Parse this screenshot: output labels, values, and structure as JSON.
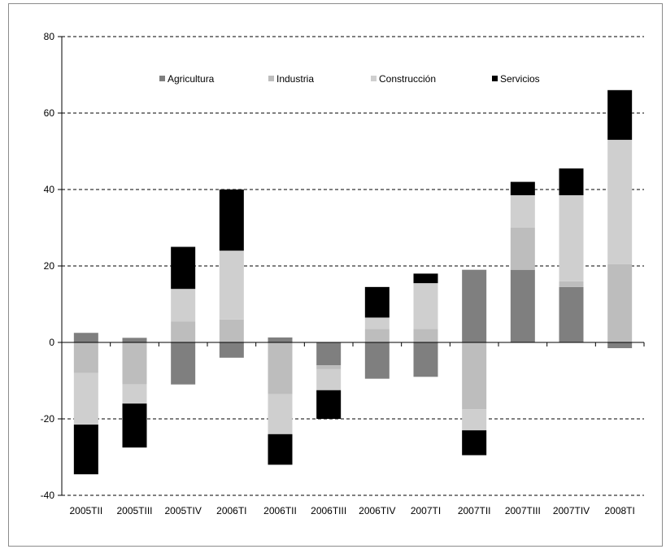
{
  "chart_data": {
    "type": "bar",
    "stacked": true,
    "categories": [
      "2005TII",
      "2005TIII",
      "2005TIV",
      "2006TI",
      "2006TII",
      "2006TIII",
      "2006TIV",
      "2007TI",
      "2007TII",
      "2007TIII",
      "2007TIV",
      "2008TI"
    ],
    "series": [
      {
        "name": "Agricultura",
        "color": "#7f7f7f",
        "values": [
          2.5,
          1.2,
          -11,
          -4,
          1.3,
          -6,
          -9.5,
          -9,
          19,
          19,
          14.5,
          -1.5
        ]
      },
      {
        "name": "Industria",
        "color": "#bdbdbd",
        "values": [
          -8,
          -11,
          5.5,
          6,
          -13.5,
          -1,
          3.5,
          3.5,
          -17.5,
          11,
          1.5,
          20.5
        ]
      },
      {
        "name": "Construcción",
        "color": "#cfcfcf",
        "values": [
          -13.5,
          -5,
          8.5,
          18,
          -10.5,
          -5.5,
          3,
          12,
          -5.5,
          8.5,
          22.5,
          32.5
        ]
      },
      {
        "name": "Servicios",
        "color": "#000000",
        "values": [
          -13,
          -11.5,
          11,
          16,
          -8,
          -7.5,
          8,
          2.5,
          -6.5,
          3.5,
          7,
          13
        ]
      }
    ],
    "ylim": [
      -40,
      80
    ],
    "yticks": [
      -40,
      -20,
      0,
      20,
      40,
      60,
      80
    ],
    "grid": true,
    "legend_position": "top"
  }
}
